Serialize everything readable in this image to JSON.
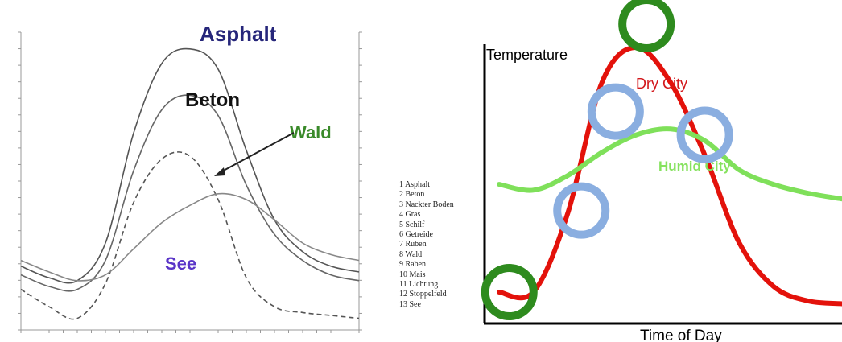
{
  "chart_data": [
    {
      "type": "line",
      "x": [
        0,
        1,
        2,
        3,
        4,
        5,
        6,
        7,
        8,
        9,
        10,
        11,
        12
      ],
      "series": [
        {
          "name": "Asphalt",
          "label": "Asphalt",
          "values": [
            22,
            18,
            17,
            30,
            68,
            92,
            97,
            90,
            62,
            38,
            27,
            22,
            20
          ],
          "color": "#555555"
        },
        {
          "name": "Beton",
          "label": "Beton",
          "values": [
            19,
            15,
            14,
            24,
            55,
            76,
            81,
            74,
            50,
            33,
            24,
            19,
            17
          ],
          "color": "#666666"
        },
        {
          "name": "Wald",
          "label": "Wald",
          "values": [
            14,
            8,
            4,
            16,
            44,
            59,
            60,
            45,
            18,
            8,
            6,
            5,
            4
          ],
          "color": "#555555"
        },
        {
          "name": "See",
          "label": "See",
          "values": [
            24,
            20,
            17,
            19,
            28,
            37,
            43,
            47,
            45,
            38,
            30,
            26,
            24
          ],
          "color": "#888888"
        }
      ],
      "legend_labels": [
        "1 Asphalt",
        "2 Beton",
        "3 Nackter Boden",
        "4 Gras",
        "5 Schilf",
        "6 Getreide",
        "7 Rüben",
        "8 Wald",
        "9 Raben",
        "10 Mais",
        "11 Lichtung",
        "12 Stoppelfeld",
        "13 See"
      ],
      "legend_placement": "right",
      "grid": false
    },
    {
      "type": "line",
      "x": [
        0,
        1,
        2,
        3,
        4,
        5,
        6,
        7,
        8,
        9,
        10
      ],
      "series": [
        {
          "name": "Dry City",
          "label": "Dry City",
          "values": [
            8,
            8,
            35,
            80,
            92,
            80,
            55,
            25,
            10,
            5,
            4
          ],
          "color": "#e3120b"
        },
        {
          "name": "Humid City",
          "label": "Humid City",
          "values": [
            45,
            43,
            48,
            56,
            62,
            64,
            60,
            50,
            45,
            42,
            40
          ],
          "color": "#7fe05a"
        }
      ],
      "xlabel": "Time of Day",
      "ylabel": "Temperature",
      "markers": [
        {
          "x": 0.3,
          "y": 8,
          "color": "#2e8b1e"
        },
        {
          "x": 2.4,
          "y": 36,
          "color": "#8aaee0"
        },
        {
          "x": 3.4,
          "y": 70,
          "color": "#8aaee0"
        },
        {
          "x": 4.3,
          "y": 100,
          "color": "#2e8b1e"
        },
        {
          "x": 6.0,
          "y": 62,
          "color": "#8aaee0"
        }
      ],
      "grid": false
    }
  ]
}
